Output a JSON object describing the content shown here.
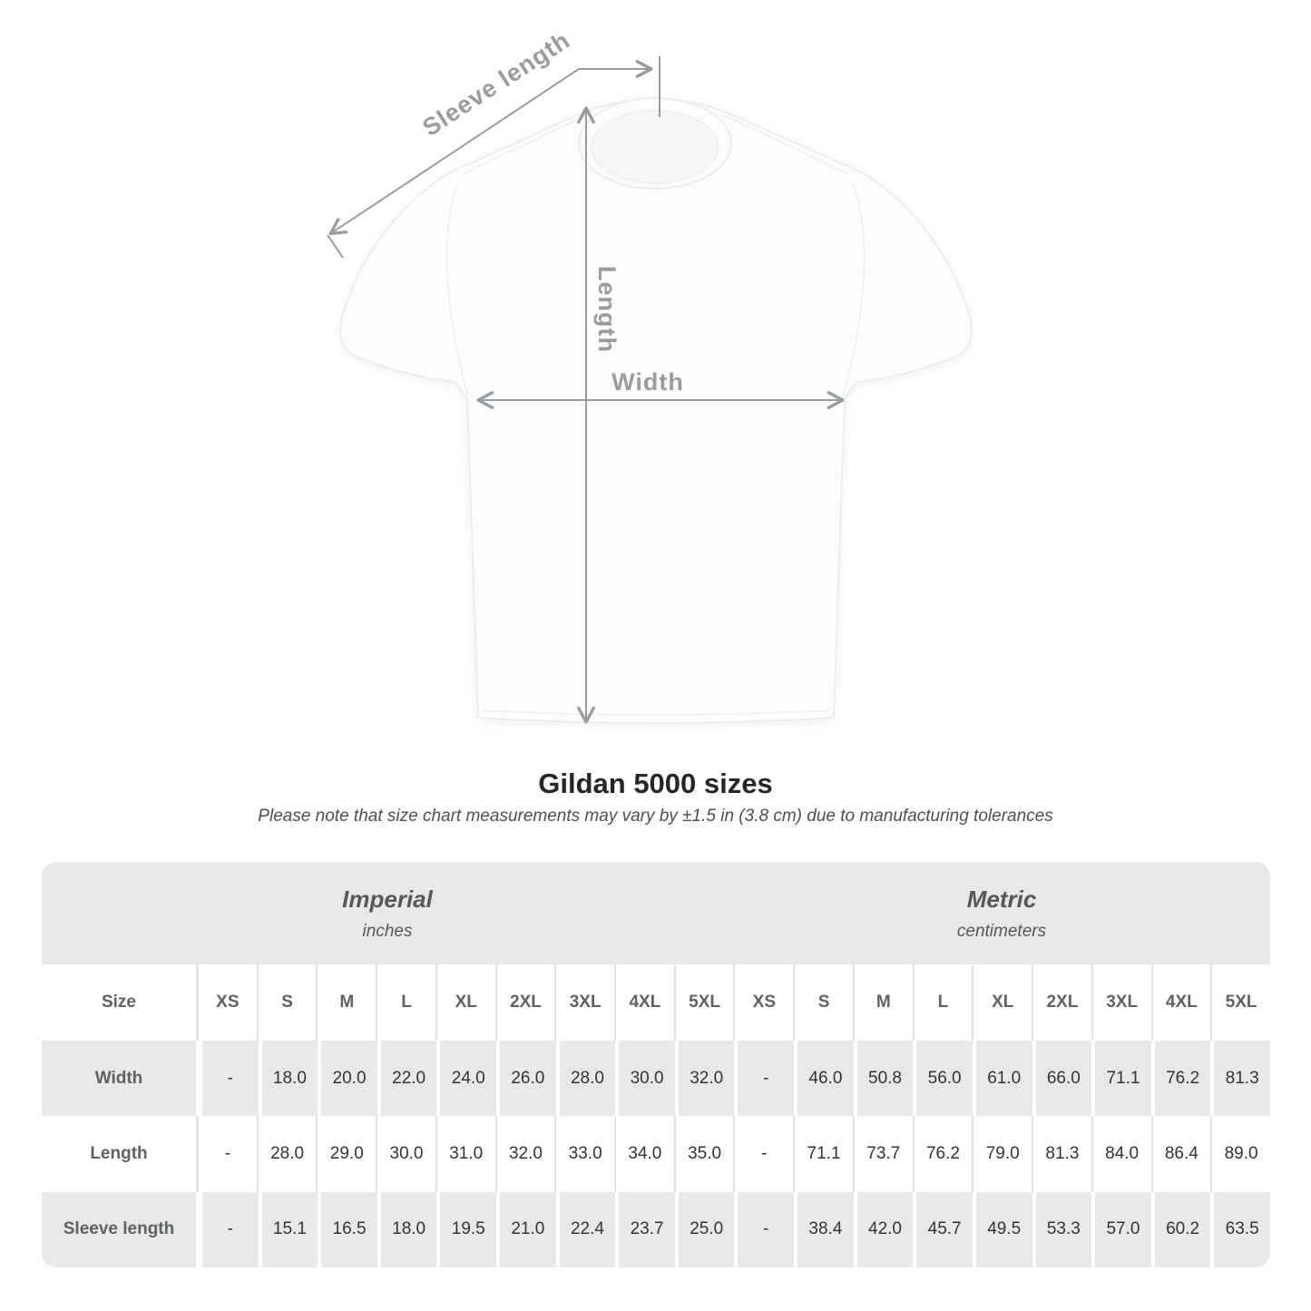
{
  "diagram": {
    "labels": {
      "sleeve_length": "Sleeve length",
      "length": "Length",
      "width": "Width"
    }
  },
  "chart_data": {
    "type": "table",
    "title": "Gildan 5000 sizes",
    "note": "Please note that size chart measurements may vary by ±1.5 in (3.8 cm) due to manufacturing tolerances",
    "size_column_header": "Size",
    "groups": [
      {
        "title": "Imperial",
        "subtitle": "inches"
      },
      {
        "title": "Metric",
        "subtitle": "centimeters"
      }
    ],
    "sizes": [
      "XS",
      "S",
      "M",
      "L",
      "XL",
      "2XL",
      "3XL",
      "4XL",
      "5XL"
    ],
    "rows": [
      {
        "label": "Width",
        "imperial": [
          "-",
          "18.0",
          "20.0",
          "22.0",
          "24.0",
          "26.0",
          "28.0",
          "30.0",
          "32.0"
        ],
        "metric": [
          "-",
          "46.0",
          "50.8",
          "56.0",
          "61.0",
          "66.0",
          "71.1",
          "76.2",
          "81.3"
        ]
      },
      {
        "label": "Length",
        "imperial": [
          "-",
          "28.0",
          "29.0",
          "30.0",
          "31.0",
          "32.0",
          "33.0",
          "34.0",
          "35.0"
        ],
        "metric": [
          "-",
          "71.1",
          "73.7",
          "76.2",
          "79.0",
          "81.3",
          "84.0",
          "86.4",
          "89.0"
        ]
      },
      {
        "label": "Sleeve length",
        "imperial": [
          "-",
          "15.1",
          "16.5",
          "18.0",
          "19.5",
          "21.0",
          "22.4",
          "23.7",
          "25.0"
        ],
        "metric": [
          "-",
          "38.4",
          "42.0",
          "45.7",
          "49.5",
          "53.3",
          "57.0",
          "60.2",
          "63.5"
        ]
      }
    ]
  },
  "colors": {
    "band_gray": "#e8e8e8",
    "separator_gray": "#e3e3e3",
    "value_text": "#333333",
    "label_text": "#5d6265",
    "title_text": "#262626",
    "subtitle_text": "#4e4e4e",
    "dim_line": "#979ca0",
    "dim_label": "#9b9b9b"
  }
}
